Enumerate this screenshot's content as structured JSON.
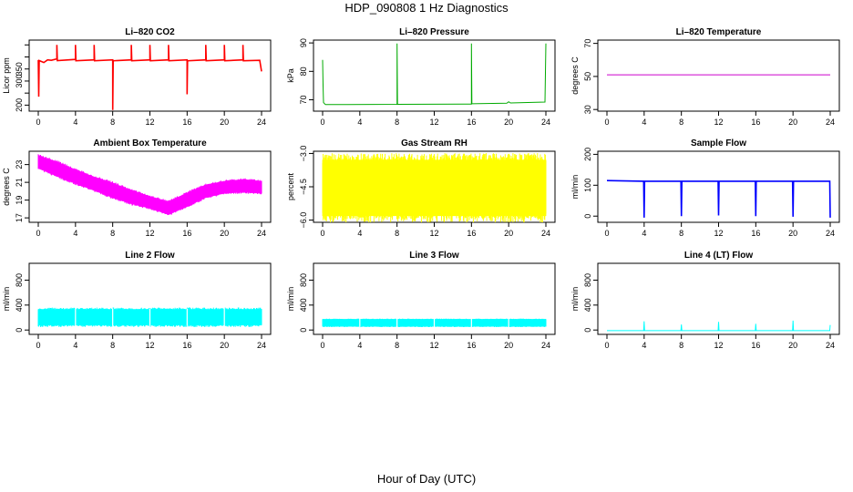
{
  "title": "HDP_090808 1 Hz Diagnostics",
  "xlabel": "Hour of Day (UTC)",
  "chart_data": [
    {
      "id": "co2",
      "type": "line",
      "title": "Li–820 CO2",
      "ylabel": "Licor ppm",
      "color": "#ff0000",
      "xlim": [
        0,
        24
      ],
      "xticks": [
        0,
        4,
        8,
        12,
        16,
        20,
        24
      ],
      "xtick_labels": [
        "0",
        "4",
        "8",
        "12",
        "16",
        "20",
        "24"
      ],
      "ylim": [
        175,
        470
      ],
      "yticks": [
        200,
        250,
        300,
        350,
        400,
        450
      ],
      "ytick_labels": [
        "200",
        "",
        "300",
        "350",
        "",
        ""
      ],
      "series": [
        {
          "values": [
            [
              0,
              387
            ],
            [
              0.05,
              235
            ],
            [
              0.1,
              385
            ],
            [
              0.6,
              377
            ],
            [
              1.0,
              388
            ],
            [
              1.4,
              386
            ],
            [
              2.0,
              392
            ],
            [
              2.0,
              450
            ],
            [
              2.05,
              385
            ],
            [
              4.0,
              390
            ],
            [
              4.0,
              450
            ],
            [
              4.05,
              384
            ],
            [
              6.0,
              388
            ],
            [
              6.0,
              450
            ],
            [
              6.05,
              384
            ],
            [
              8.0,
              388
            ],
            [
              8.0,
              180
            ],
            [
              8.05,
              384
            ],
            [
              10.0,
              388
            ],
            [
              10.0,
              450
            ],
            [
              10.05,
              384
            ],
            [
              12.0,
              388
            ],
            [
              12.0,
              450
            ],
            [
              12.05,
              384
            ],
            [
              14.0,
              388
            ],
            [
              14.0,
              450
            ],
            [
              14.05,
              384
            ],
            [
              16.0,
              388
            ],
            [
              16.0,
              245
            ],
            [
              16.05,
              384
            ],
            [
              18.0,
              388
            ],
            [
              18.0,
              450
            ],
            [
              18.05,
              384
            ],
            [
              20.0,
              388
            ],
            [
              20.0,
              450
            ],
            [
              20.05,
              384
            ],
            [
              22.0,
              388
            ],
            [
              22.0,
              450
            ],
            [
              22.05,
              384
            ],
            [
              23.8,
              386
            ],
            [
              24.0,
              340
            ]
          ]
        }
      ]
    },
    {
      "id": "pressure",
      "type": "line",
      "title": "Li–820 Pressure",
      "ylabel": "kPa",
      "color": "#00aa00",
      "xlim": [
        0,
        24
      ],
      "xticks": [
        0,
        4,
        8,
        12,
        16,
        20,
        24
      ],
      "xtick_labels": [
        "0",
        "4",
        "8",
        "12",
        "16",
        "20",
        "24"
      ],
      "ylim": [
        66,
        91
      ],
      "yticks": [
        70,
        80,
        90
      ],
      "ytick_labels": [
        "70",
        "80",
        "90"
      ],
      "series": [
        {
          "values": [
            [
              0,
              84
            ],
            [
              0.05,
              75
            ],
            [
              0.1,
              69
            ],
            [
              0.3,
              68.3
            ],
            [
              8.0,
              68.4
            ],
            [
              8.0,
              89.8
            ],
            [
              8.05,
              68.4
            ],
            [
              16.0,
              68.5
            ],
            [
              16.0,
              89.8
            ],
            [
              16.05,
              68.6
            ],
            [
              19.8,
              68.8
            ],
            [
              20.0,
              69.3
            ],
            [
              20.2,
              68.9
            ],
            [
              23.9,
              69.2
            ],
            [
              24.0,
              89.8
            ]
          ]
        }
      ]
    },
    {
      "id": "licor-temp",
      "type": "line",
      "title": "Li–820 Temperature",
      "ylabel": "degrees C",
      "color": "#cc00cc",
      "xlim": [
        0,
        24
      ],
      "xticks": [
        0,
        4,
        8,
        12,
        16,
        20,
        24
      ],
      "xtick_labels": [
        "0",
        "4",
        "8",
        "12",
        "16",
        "20",
        "24"
      ],
      "ylim": [
        29,
        72
      ],
      "yticks": [
        30,
        50,
        70
      ],
      "ytick_labels": [
        "30",
        "50",
        "70"
      ],
      "series": [
        {
          "values": [
            [
              0,
              51
            ],
            [
              24,
              51
            ]
          ]
        }
      ]
    },
    {
      "id": "box-temp",
      "type": "area",
      "title": "Ambient Box Temperature",
      "ylabel": "degrees C",
      "color": "#ff00ff",
      "xlim": [
        0,
        24
      ],
      "xticks": [
        0,
        4,
        8,
        12,
        16,
        20,
        24
      ],
      "xtick_labels": [
        "0",
        "4",
        "8",
        "12",
        "16",
        "20",
        "24"
      ],
      "ylim": [
        16.5,
        24.5
      ],
      "yticks": [
        17,
        19,
        21,
        23
      ],
      "ytick_labels": [
        "17",
        "19",
        "21",
        "23"
      ],
      "series": [
        {
          "name": "upper",
          "values": [
            [
              0,
              24.0
            ],
            [
              2,
              23.3
            ],
            [
              4,
              22.4
            ],
            [
              6,
              21.6
            ],
            [
              8,
              20.9
            ],
            [
              10,
              20.1
            ],
            [
              12,
              19.4
            ],
            [
              14,
              18.8
            ],
            [
              16,
              19.8
            ],
            [
              18,
              20.7
            ],
            [
              20,
              21.1
            ],
            [
              22,
              21.3
            ],
            [
              24,
              21.1
            ]
          ]
        },
        {
          "name": "lower",
          "values": [
            [
              0,
              22.6
            ],
            [
              2,
              21.7
            ],
            [
              4,
              20.9
            ],
            [
              6,
              20.1
            ],
            [
              8,
              19.3
            ],
            [
              10,
              18.6
            ],
            [
              12,
              18.1
            ],
            [
              14,
              17.4
            ],
            [
              16,
              18.3
            ],
            [
              18,
              19.3
            ],
            [
              20,
              19.8
            ],
            [
              22,
              19.9
            ],
            [
              24,
              19.8
            ]
          ]
        }
      ]
    },
    {
      "id": "rh",
      "type": "area",
      "title": "Gas Stream RH",
      "ylabel": "percent",
      "color": "#ffff00",
      "xlim": [
        0,
        24
      ],
      "xticks": [
        0,
        4,
        8,
        12,
        16,
        20,
        24
      ],
      "xtick_labels": [
        "0",
        "4",
        "8",
        "12",
        "16",
        "20",
        "24"
      ],
      "ylim": [
        -6.1,
        -2.9
      ],
      "yticks": [
        -6.0,
        -4.5,
        -3.0
      ],
      "ytick_labels": [
        "−6.0",
        "−4.5",
        "−3.0"
      ],
      "series": [
        {
          "name": "upper",
          "values": [
            [
              0,
              -3.3
            ],
            [
              24,
              -3.3
            ]
          ]
        },
        {
          "name": "lower",
          "values": [
            [
              0,
              -5.8
            ],
            [
              24,
              -5.8
            ]
          ]
        }
      ]
    },
    {
      "id": "sample-flow",
      "type": "line",
      "title": "Sample Flow",
      "ylabel": "ml/min",
      "color": "#0000ff",
      "xlim": [
        0,
        24
      ],
      "xticks": [
        0,
        4,
        8,
        12,
        16,
        20,
        24
      ],
      "xtick_labels": [
        "0",
        "4",
        "8",
        "12",
        "16",
        "20",
        "24"
      ],
      "ylim": [
        -20,
        210
      ],
      "yticks": [
        0,
        100,
        200
      ],
      "ytick_labels": [
        "0",
        "100",
        "200"
      ],
      "series": [
        {
          "values": [
            [
              0,
              115
            ],
            [
              3.95,
              113
            ],
            [
              4.0,
              -5
            ],
            [
              4.05,
              113
            ],
            [
              7.95,
              113
            ],
            [
              8.0,
              0
            ],
            [
              8.05,
              113
            ],
            [
              11.95,
              113
            ],
            [
              12.0,
              2
            ],
            [
              12.05,
              113
            ],
            [
              15.95,
              113
            ],
            [
              16.0,
              0
            ],
            [
              16.05,
              113
            ],
            [
              19.95,
              113
            ],
            [
              20.0,
              -2
            ],
            [
              20.05,
              113
            ],
            [
              23.95,
              113
            ],
            [
              24.0,
              -5
            ]
          ]
        }
      ]
    },
    {
      "id": "line2-flow",
      "type": "area",
      "title": "Line 2 Flow",
      "ylabel": "ml/min",
      "color": "#00ffff",
      "xlim": [
        0,
        24
      ],
      "xticks": [
        0,
        4,
        8,
        12,
        16,
        20,
        24
      ],
      "xtick_labels": [
        "0",
        "4",
        "8",
        "12",
        "16",
        "20",
        "24"
      ],
      "ylim": [
        -70,
        1070
      ],
      "yticks": [
        0,
        400,
        800
      ],
      "ytick_labels": [
        "0",
        "400",
        "800"
      ],
      "series": [
        {
          "name": "upper",
          "values": [
            [
              0,
              330
            ],
            [
              24,
              330
            ]
          ]
        },
        {
          "name": "lower",
          "values": [
            [
              0,
              80
            ],
            [
              24,
              80
            ]
          ]
        }
      ]
    },
    {
      "id": "line3-flow",
      "type": "area",
      "title": "Line 3 Flow",
      "ylabel": "ml/min",
      "color": "#00ffff",
      "xlim": [
        0,
        24
      ],
      "xticks": [
        0,
        4,
        8,
        12,
        16,
        20,
        24
      ],
      "xtick_labels": [
        "0",
        "4",
        "8",
        "12",
        "16",
        "20",
        "24"
      ],
      "ylim": [
        -70,
        1070
      ],
      "yticks": [
        0,
        400,
        800
      ],
      "ytick_labels": [
        "0",
        "400",
        "800"
      ],
      "series": [
        {
          "name": "upper",
          "values": [
            [
              0,
              170
            ],
            [
              24,
              170
            ]
          ]
        },
        {
          "name": "lower",
          "values": [
            [
              0,
              60
            ],
            [
              24,
              60
            ]
          ]
        }
      ]
    },
    {
      "id": "line4-flow",
      "type": "line",
      "title": "Line 4 (LT) Flow",
      "ylabel": "ml/min",
      "color": "#00ffff",
      "xlim": [
        0,
        24
      ],
      "xticks": [
        0,
        4,
        8,
        12,
        16,
        20,
        24
      ],
      "xtick_labels": [
        "0",
        "4",
        "8",
        "12",
        "16",
        "20",
        "24"
      ],
      "ylim": [
        -70,
        1070
      ],
      "yticks": [
        0,
        400,
        800
      ],
      "ytick_labels": [
        "0",
        "400",
        "800"
      ],
      "series": [
        {
          "values": [
            [
              0,
              -10
            ],
            [
              3.95,
              -10
            ],
            [
              4.0,
              140
            ],
            [
              4.05,
              -10
            ],
            [
              7.95,
              -10
            ],
            [
              8.0,
              90
            ],
            [
              8.05,
              -10
            ],
            [
              11.95,
              -10
            ],
            [
              12.0,
              130
            ],
            [
              12.05,
              -10
            ],
            [
              15.95,
              -10
            ],
            [
              16.0,
              100
            ],
            [
              16.05,
              -10
            ],
            [
              19.95,
              -10
            ],
            [
              20.0,
              150
            ],
            [
              20.05,
              -10
            ],
            [
              23.95,
              -10
            ],
            [
              24.0,
              80
            ]
          ]
        }
      ]
    }
  ]
}
